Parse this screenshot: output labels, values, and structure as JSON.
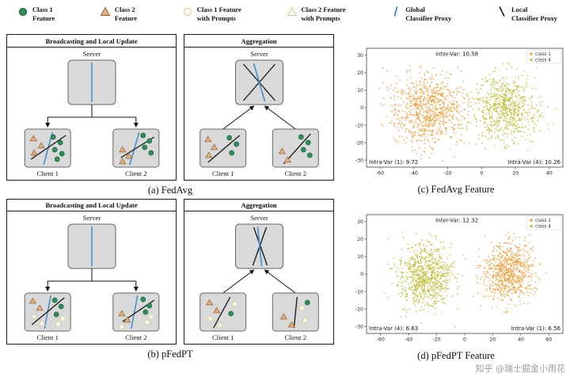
{
  "figure": {
    "watermark": "知乎 @瑞士掘金小雨花"
  },
  "colors": {
    "class1": "#2f8f5b",
    "class1_edge": "#16603a",
    "class2": "#e2b183",
    "class2_edge": "#96642f",
    "prompt": "#fdfae9",
    "prompt_edge": "#d4cb96",
    "global_proxy": "#4a90c9",
    "local_proxy": "#141414",
    "scatter_class1": "#ECA243",
    "scatter_class4": "#BFC03C"
  },
  "legend": {
    "items": [
      {
        "icon": "class1-feature-icon",
        "line1": "Class 1",
        "line2": "Feature"
      },
      {
        "icon": "class2-feature-icon",
        "line1": "Class 2",
        "line2": "Feature"
      },
      {
        "icon": "class1-prompt-feature-icon",
        "line1": "Class 1 Feature",
        "line2": "with Prompts"
      },
      {
        "icon": "class2-prompt-feature-icon",
        "line1": "Class 2 Feature",
        "line2": "with Prompts"
      },
      {
        "icon": "global-classifier-proxy-icon",
        "line1": "Global",
        "line2": "Classifier Proxy"
      },
      {
        "icon": "local-classifier-proxy-icon",
        "line1": "Local",
        "line2": "Classifier Proxy"
      }
    ]
  },
  "diagrams": {
    "labels": {
      "server": "Server",
      "client1": "Client 1",
      "client2": "Client 2"
    },
    "a": {
      "left_title": "Broadcasting and Local Update",
      "right_title": "Aggregation",
      "caption": "(a) FedAvg"
    },
    "b": {
      "left_title": "Broadcasting and Local Update",
      "right_title": "Aggregation",
      "caption": "(b) pFedPT"
    },
    "scenes": {
      "a_left": {
        "kind": "broadcast",
        "server": [
          [
            "global",
            0,
            -25,
            0,
            25
          ]
        ],
        "clients": [
          {
            "glyphs": [
              [
                "tri",
                11,
                12
              ],
              [
                "tri",
                21,
                21
              ],
              [
                "tri",
                12,
                30
              ],
              [
                "cir",
                36,
                10
              ],
              [
                "cir",
                45,
                17
              ],
              [
                "cir",
                38,
                26
              ],
              [
                "cir",
                47,
                31
              ],
              [
                "cir",
                41,
                38
              ]
            ],
            "lines": [
              [
                "global",
                24,
                45,
                35,
                4
              ],
              [
                "local",
                8,
                38,
                52,
                8
              ]
            ]
          },
          {
            "glyphs": [
              [
                "cir",
                38,
                8
              ],
              [
                "cir",
                46,
                15
              ],
              [
                "cir",
                40,
                23
              ],
              [
                "cir",
                48,
                30
              ],
              [
                "tri",
                12,
                26
              ],
              [
                "tri",
                20,
                34
              ],
              [
                "tri",
                12,
                41
              ]
            ],
            "lines": [
              [
                "global",
                21,
                45,
                33,
                4
              ],
              [
                "local",
                10,
                36,
                52,
                10
              ]
            ]
          }
        ]
      },
      "a_right": {
        "kind": "agg",
        "server": [
          [
            "local",
            -20,
            -23,
            20,
            23
          ],
          [
            "local",
            20,
            -23,
            -20,
            23
          ],
          [
            "global",
            -7,
            -24,
            7,
            24
          ]
        ],
        "clients": [
          {
            "glyphs": [
              [
                "tri",
                10,
                13
              ],
              [
                "tri",
                18,
                23
              ],
              [
                "tri",
                11,
                33
              ],
              [
                "cir",
                37,
                11
              ],
              [
                "cir",
                46,
                19
              ],
              [
                "cir",
                40,
                30
              ]
            ],
            "lines": [
              [
                "local",
                10,
                42,
                50,
                8
              ]
            ]
          },
          {
            "glyphs": [
              [
                "cir",
                36,
                10
              ],
              [
                "cir",
                45,
                17
              ],
              [
                "cir",
                39,
                26
              ],
              [
                "cir",
                47,
                33
              ],
              [
                "tri",
                12,
                28
              ],
              [
                "tri",
                19,
                39
              ]
            ],
            "lines": [
              [
                "local",
                14,
                44,
                48,
                6
              ]
            ]
          }
        ]
      },
      "b_left": {
        "kind": "broadcast",
        "server": [
          [
            "global",
            0,
            -25,
            0,
            25
          ]
        ],
        "clients": [
          {
            "glyphs": [
              [
                "tri",
                10,
                10
              ],
              [
                "tri",
                19,
                19
              ],
              [
                "ptri",
                12,
                29
              ],
              [
                "ptri",
                22,
                38
              ],
              [
                "cir",
                38,
                9
              ],
              [
                "cir",
                46,
                17
              ],
              [
                "cir",
                40,
                27
              ],
              [
                "pcir",
                48,
                32
              ],
              [
                "pcir",
                42,
                39
              ]
            ],
            "lines": [
              [
                "global",
                25,
                45,
                33,
                3
              ],
              [
                "local",
                9,
                40,
                50,
                6
              ]
            ]
          },
          {
            "glyphs": [
              [
                "cir",
                38,
                8
              ],
              [
                "cir",
                46,
                16
              ],
              [
                "cir",
                41,
                24
              ],
              [
                "pcir",
                48,
                30
              ],
              [
                "pcir",
                43,
                37
              ],
              [
                "tri",
                11,
                26
              ],
              [
                "tri",
                18,
                34
              ],
              [
                "ptri",
                11,
                42
              ]
            ],
            "lines": [
              [
                "global",
                23,
                45,
                31,
                3
              ],
              [
                "local",
                12,
                36,
                52,
                9
              ]
            ]
          }
        ]
      },
      "b_right": {
        "kind": "agg",
        "server": [
          [
            "local",
            -7,
            -24,
            10,
            24
          ],
          [
            "local",
            9,
            -24,
            -8,
            24
          ],
          [
            "global",
            -2,
            -25,
            3,
            25
          ]
        ],
        "clients": [
          {
            "glyphs": [
              [
                "tri",
                12,
                12
              ],
              [
                "tri",
                21,
                22
              ],
              [
                "ptri",
                13,
                32
              ],
              [
                "ptri",
                25,
                40
              ],
              [
                "pcir",
                44,
                14
              ],
              [
                "cir",
                39,
                26
              ]
            ],
            "lines": [
              [
                "local",
                17,
                44,
                38,
                5
              ]
            ]
          },
          {
            "glyphs": [
              [
                "cir",
                44,
                12
              ],
              [
                "pcir",
                37,
                19
              ],
              [
                "tri",
                14,
                30
              ],
              [
                "tri",
                24,
                40
              ],
              [
                "ptri",
                41,
                34
              ]
            ],
            "lines": [
              [
                "local",
                31,
                5,
                27,
                44
              ]
            ]
          }
        ]
      }
    }
  },
  "chart_data": [
    {
      "type": "scatter",
      "caption": "(c) FedAvg Feature",
      "inter_var": "Inter-Var: 10.58",
      "intra_left": "Intra-Var (1): 9.72",
      "intra_right": "Intra-Var (4): 10.26",
      "xlim": [
        -68,
        48
      ],
      "ylim": [
        -34,
        34
      ],
      "xticks": [
        -60,
        -40,
        -20,
        0,
        20,
        40
      ],
      "yticks": [
        -30,
        -20,
        -10,
        0,
        10,
        20,
        30
      ],
      "grid": false,
      "legend_position": "upper right",
      "legend": [
        {
          "label": "class 1",
          "color": "#ECA243"
        },
        {
          "label": "class 4",
          "color": "#BFC03C"
        }
      ],
      "clusters": [
        {
          "label": "class 1",
          "color": "#ECA243",
          "cx": -32,
          "cy": -2,
          "sx": 11,
          "sy": 10,
          "n": 850,
          "seed": 101
        },
        {
          "label": "class 4",
          "color": "#BFC03C",
          "cx": 14,
          "cy": 0,
          "sx": 9,
          "sy": 9.5,
          "n": 700,
          "seed": 202
        }
      ]
    },
    {
      "type": "scatter",
      "caption": "(d) pFedPT Feature",
      "inter_var": "Inter-Var: 12.32",
      "intra_left": "Intra-Var (4): 6.63",
      "intra_right": "Intra-Var (1): 6.56",
      "xlim": [
        -70,
        70
      ],
      "ylim": [
        -34,
        34
      ],
      "xticks": [
        -60,
        -40,
        -20,
        0,
        20,
        40,
        60
      ],
      "yticks": [
        -30,
        -20,
        -10,
        0,
        10,
        20,
        30
      ],
      "grid": false,
      "legend_position": "upper right",
      "legend": [
        {
          "label": "class 1",
          "color": "#ECA243"
        },
        {
          "label": "class 4",
          "color": "#BFC03C"
        }
      ],
      "clusters": [
        {
          "label": "class 4",
          "color": "#BFC03C",
          "cx": -28,
          "cy": -1,
          "sx": 9.5,
          "sy": 9,
          "n": 800,
          "seed": 303
        },
        {
          "label": "class 1",
          "color": "#ECA243",
          "cx": 31,
          "cy": 1,
          "sx": 9,
          "sy": 8.5,
          "n": 750,
          "seed": 404
        }
      ]
    }
  ]
}
